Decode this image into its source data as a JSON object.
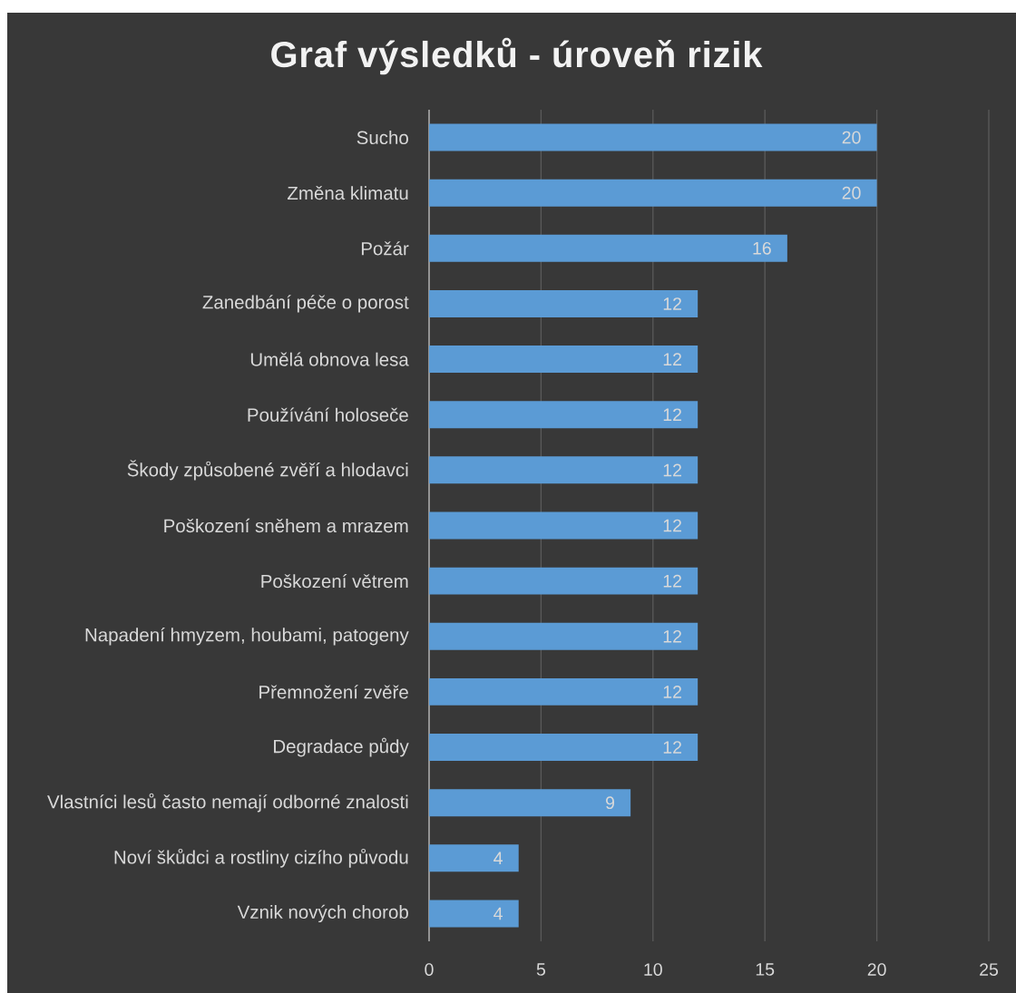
{
  "chart_data": {
    "type": "bar",
    "orientation": "horizontal",
    "title": "Graf výsledků - úroveň rizik",
    "categories": [
      "Sucho",
      "Změna klimatu",
      "Požár",
      "Zanedbání péče o porost",
      "Umělá obnova lesa",
      "Používání holoseče",
      "Škody způsobené zvěří a hlodavci",
      "Poškození sněhem a mrazem",
      "Poškození větrem",
      "Napadení hmyzem, houbami, patogeny",
      "Přemnožení zvěře",
      "Degradace půdy",
      "Vlastníci lesů často nemají odborné znalosti",
      "Noví škůdci a rostliny cizího původu",
      "Vznik nových chorob"
    ],
    "values": [
      20,
      20,
      16,
      12,
      12,
      12,
      12,
      12,
      12,
      12,
      12,
      12,
      9,
      4,
      4
    ],
    "color": "#5b9bd5",
    "xlim": [
      0,
      25
    ],
    "xticks": [
      0,
      5,
      10,
      15,
      20,
      25
    ],
    "grid": "x",
    "data_labels": true
  }
}
